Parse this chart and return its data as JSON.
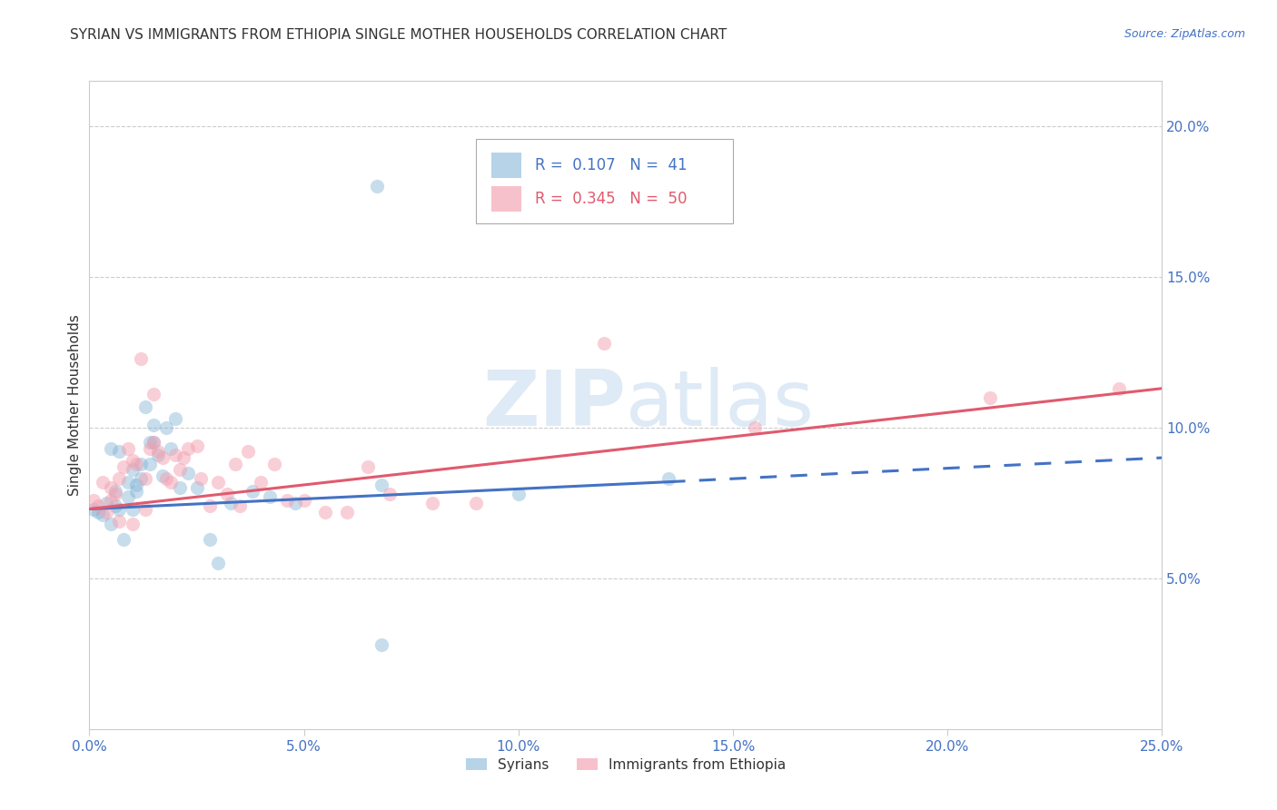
{
  "title": "SYRIAN VS IMMIGRANTS FROM ETHIOPIA SINGLE MOTHER HOUSEHOLDS CORRELATION CHART",
  "source": "Source: ZipAtlas.com",
  "ylabel": "Single Mother Households",
  "xlim": [
    0.0,
    0.25
  ],
  "ylim": [
    0.0,
    0.215
  ],
  "ytick_positions": [
    0.05,
    0.1,
    0.15,
    0.2
  ],
  "xtick_positions": [
    0.0,
    0.05,
    0.1,
    0.15,
    0.2,
    0.25
  ],
  "legend_entries": [
    {
      "label": "Syrians",
      "color": "#7bafd4",
      "R": "0.107",
      "N": "41"
    },
    {
      "label": "Immigrants from Ethiopia",
      "color": "#f4a0b0",
      "R": "0.345",
      "N": "50"
    }
  ],
  "watermark": "ZIPatlas",
  "blue_line_solid": {
    "x": [
      0.0,
      0.135
    ],
    "y": [
      0.073,
      0.082
    ]
  },
  "blue_line_dashed": {
    "x": [
      0.135,
      0.25
    ],
    "y": [
      0.082,
      0.09
    ]
  },
  "pink_line": {
    "x": [
      0.0,
      0.25
    ],
    "y": [
      0.073,
      0.113
    ]
  },
  "syrians_x": [
    0.001,
    0.002,
    0.003,
    0.004,
    0.005,
    0.005,
    0.006,
    0.006,
    0.007,
    0.007,
    0.008,
    0.009,
    0.009,
    0.01,
    0.01,
    0.011,
    0.011,
    0.012,
    0.012,
    0.013,
    0.014,
    0.014,
    0.015,
    0.015,
    0.016,
    0.017,
    0.018,
    0.019,
    0.02,
    0.021,
    0.023,
    0.025,
    0.028,
    0.03,
    0.033,
    0.038,
    0.042,
    0.048,
    0.068,
    0.1,
    0.135
  ],
  "syrians_y": [
    0.073,
    0.072,
    0.071,
    0.075,
    0.093,
    0.068,
    0.079,
    0.074,
    0.092,
    0.073,
    0.063,
    0.077,
    0.082,
    0.086,
    0.073,
    0.081,
    0.079,
    0.083,
    0.088,
    0.107,
    0.095,
    0.088,
    0.101,
    0.095,
    0.091,
    0.084,
    0.1,
    0.093,
    0.103,
    0.08,
    0.085,
    0.08,
    0.063,
    0.055,
    0.075,
    0.079,
    0.077,
    0.075,
    0.081,
    0.078,
    0.083
  ],
  "syrians_outlier_x": [
    0.067
  ],
  "syrians_outlier_y": [
    0.18
  ],
  "syrians_low_x": [
    0.068
  ],
  "syrians_low_y": [
    0.028
  ],
  "ethiopia_x": [
    0.001,
    0.002,
    0.003,
    0.004,
    0.005,
    0.005,
    0.006,
    0.007,
    0.007,
    0.008,
    0.009,
    0.01,
    0.01,
    0.011,
    0.012,
    0.013,
    0.013,
    0.014,
    0.015,
    0.015,
    0.016,
    0.017,
    0.018,
    0.019,
    0.02,
    0.021,
    0.022,
    0.023,
    0.025,
    0.026,
    0.028,
    0.03,
    0.032,
    0.034,
    0.035,
    0.037,
    0.04,
    0.043,
    0.046,
    0.05,
    0.055,
    0.06,
    0.065,
    0.07,
    0.08,
    0.09,
    0.12,
    0.155,
    0.21,
    0.24
  ],
  "ethiopia_y": [
    0.076,
    0.074,
    0.082,
    0.072,
    0.076,
    0.08,
    0.078,
    0.069,
    0.083,
    0.087,
    0.093,
    0.068,
    0.089,
    0.088,
    0.123,
    0.083,
    0.073,
    0.093,
    0.111,
    0.095,
    0.092,
    0.09,
    0.083,
    0.082,
    0.091,
    0.086,
    0.09,
    0.093,
    0.094,
    0.083,
    0.074,
    0.082,
    0.078,
    0.088,
    0.074,
    0.092,
    0.082,
    0.088,
    0.076,
    0.076,
    0.072,
    0.072,
    0.087,
    0.078,
    0.075,
    0.075,
    0.128,
    0.1,
    0.11,
    0.113
  ],
  "title_color": "#333333",
  "tick_color": "#4472c4",
  "axis_color": "#cccccc",
  "grid_color": "#cccccc",
  "blue_dot_color": "#7bafd4",
  "pink_dot_color": "#f4a0b0",
  "blue_line_color": "#4472c4",
  "pink_line_color": "#e05a6e"
}
